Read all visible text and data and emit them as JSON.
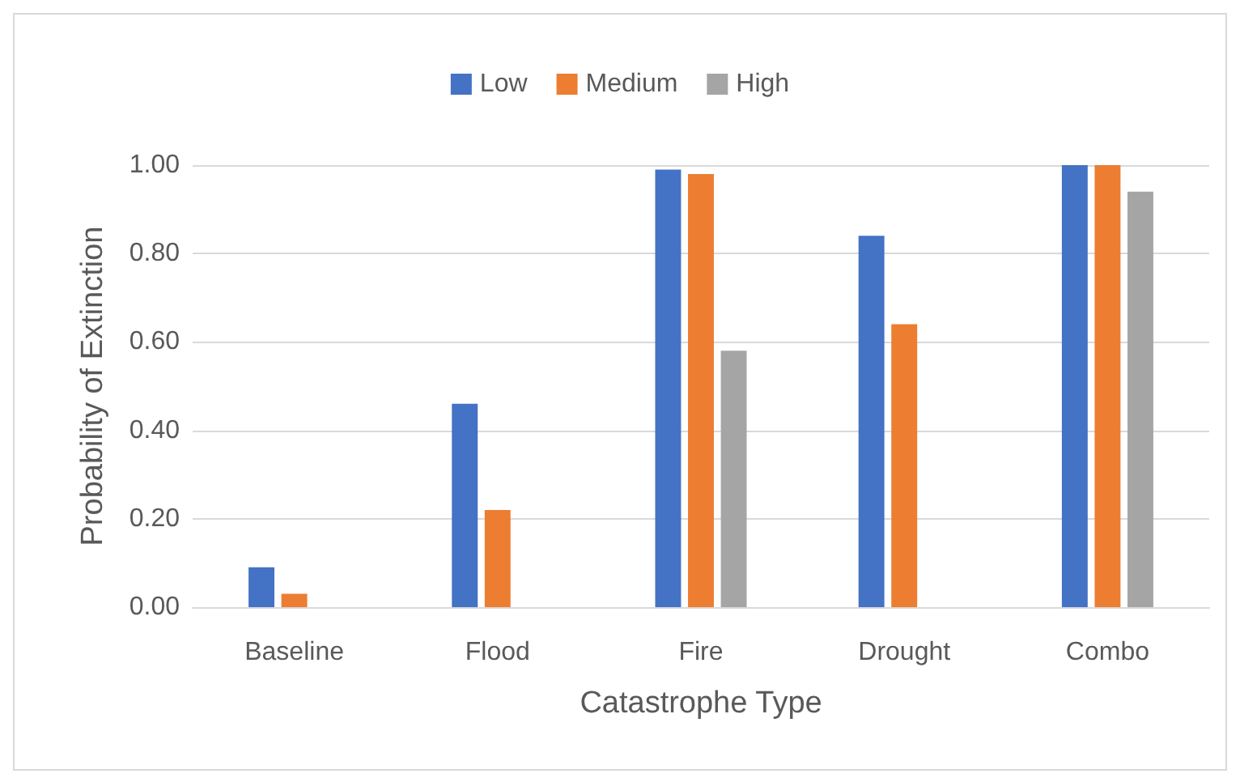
{
  "chart_data": {
    "type": "bar",
    "xlabel": "Catastrophe Type",
    "ylabel": "Probability of Extinction",
    "categories": [
      "Baseline",
      "Flood",
      "Fire",
      "Drought",
      "Combo"
    ],
    "series": [
      {
        "name": "Low",
        "color": "#4472c4",
        "values": [
          0.09,
          0.46,
          0.99,
          0.84,
          1.0
        ]
      },
      {
        "name": "Medium",
        "color": "#ed7d31",
        "values": [
          0.03,
          0.22,
          0.98,
          0.64,
          1.0
        ]
      },
      {
        "name": "High",
        "color": "#a5a5a5",
        "values": [
          0,
          0,
          0.58,
          0,
          0.94
        ]
      }
    ],
    "ylim": [
      0,
      1.0
    ],
    "yticks": [
      {
        "value": 0,
        "label": "0.00"
      },
      {
        "value": 0.2,
        "label": "0.20"
      },
      {
        "value": 0.4,
        "label": "0.40"
      },
      {
        "value": 0.6,
        "label": "0.60"
      },
      {
        "value": 0.8,
        "label": "0.80"
      },
      {
        "value": 1.0,
        "label": "1.00"
      }
    ],
    "grid": "y",
    "legend": "top"
  }
}
